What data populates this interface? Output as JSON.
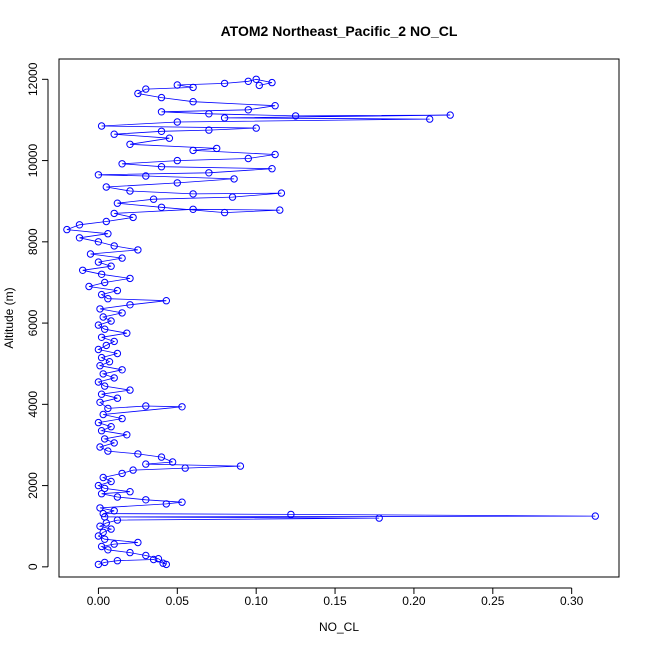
{
  "chart_data": {
    "type": "scatter",
    "title": "ATOM2 Northeast_Pacific_2 NO_CL",
    "xlabel": "NO_CL",
    "ylabel": "Altitude (m)",
    "xlim": [
      -0.025,
      0.33
    ],
    "ylim": [
      -250,
      12500
    ],
    "xticks": [
      0.0,
      0.05,
      0.1,
      0.15,
      0.2,
      0.25,
      0.3
    ],
    "xtick_labels": [
      "0.00",
      "0.05",
      "0.10",
      "0.15",
      "0.20",
      "0.25",
      "0.30"
    ],
    "yticks": [
      0,
      2000,
      4000,
      6000,
      8000,
      10000,
      12000
    ],
    "ytick_labels": [
      "0",
      "2000",
      "4000",
      "6000",
      "8000",
      "10000",
      "12000"
    ],
    "grid": false,
    "marker": "open-circle",
    "connected": true,
    "color": "#0000ff",
    "series": [
      {
        "points": [
          [
            0.0,
            60
          ],
          [
            0.004,
            110
          ],
          [
            0.012,
            150
          ],
          [
            0.035,
            180
          ],
          [
            0.041,
            90
          ],
          [
            0.043,
            60
          ],
          [
            0.038,
            200
          ],
          [
            0.03,
            280
          ],
          [
            0.02,
            350
          ],
          [
            0.006,
            420
          ],
          [
            0.002,
            500
          ],
          [
            0.01,
            560
          ],
          [
            0.025,
            600
          ],
          [
            0.004,
            680
          ],
          [
            0.0,
            760
          ],
          [
            0.003,
            850
          ],
          [
            0.008,
            930
          ],
          [
            0.001,
            1000
          ],
          [
            0.005,
            1080
          ],
          [
            0.012,
            1150
          ],
          [
            0.178,
            1200
          ],
          [
            0.004,
            1230
          ],
          [
            0.315,
            1250
          ],
          [
            0.122,
            1290
          ],
          [
            0.003,
            1310
          ],
          [
            0.01,
            1380
          ],
          [
            0.001,
            1450
          ],
          [
            0.043,
            1550
          ],
          [
            0.053,
            1590
          ],
          [
            0.03,
            1650
          ],
          [
            0.012,
            1720
          ],
          [
            0.002,
            1800
          ],
          [
            0.02,
            1850
          ],
          [
            0.004,
            1930
          ],
          [
            0.0,
            2000
          ],
          [
            0.008,
            2100
          ],
          [
            0.003,
            2200
          ],
          [
            0.015,
            2300
          ],
          [
            0.022,
            2380
          ],
          [
            0.055,
            2430
          ],
          [
            0.09,
            2480
          ],
          [
            0.03,
            2530
          ],
          [
            0.047,
            2580
          ],
          [
            0.04,
            2700
          ],
          [
            0.025,
            2780
          ],
          [
            0.006,
            2850
          ],
          [
            0.001,
            2950
          ],
          [
            0.01,
            3050
          ],
          [
            0.004,
            3150
          ],
          [
            0.018,
            3250
          ],
          [
            0.002,
            3350
          ],
          [
            0.008,
            3450
          ],
          [
            0.0,
            3550
          ],
          [
            0.015,
            3650
          ],
          [
            0.003,
            3750
          ],
          [
            0.053,
            3940
          ],
          [
            0.03,
            3960
          ],
          [
            0.006,
            3900
          ],
          [
            0.001,
            4050
          ],
          [
            0.012,
            4150
          ],
          [
            0.002,
            4250
          ],
          [
            0.02,
            4350
          ],
          [
            0.004,
            4450
          ],
          [
            0.0,
            4550
          ],
          [
            0.01,
            4650
          ],
          [
            0.003,
            4750
          ],
          [
            0.015,
            4850
          ],
          [
            0.001,
            4950
          ],
          [
            0.007,
            5050
          ],
          [
            0.002,
            5150
          ],
          [
            0.012,
            5250
          ],
          [
            0.0,
            5350
          ],
          [
            0.005,
            5450
          ],
          [
            0.01,
            5550
          ],
          [
            0.002,
            5650
          ],
          [
            0.018,
            5750
          ],
          [
            0.004,
            5850
          ],
          [
            0.0,
            5950
          ],
          [
            0.008,
            6050
          ],
          [
            0.003,
            6150
          ],
          [
            0.015,
            6250
          ],
          [
            0.001,
            6350
          ],
          [
            0.02,
            6450
          ],
          [
            0.043,
            6550
          ],
          [
            0.006,
            6600
          ],
          [
            0.002,
            6700
          ],
          [
            0.012,
            6800
          ],
          [
            -0.006,
            6900
          ],
          [
            0.004,
            7000
          ],
          [
            0.02,
            7100
          ],
          [
            0.002,
            7200
          ],
          [
            -0.01,
            7300
          ],
          [
            0.008,
            7400
          ],
          [
            0.0,
            7500
          ],
          [
            0.015,
            7600
          ],
          [
            -0.005,
            7700
          ],
          [
            0.025,
            7800
          ],
          [
            0.01,
            7900
          ],
          [
            0.0,
            8000
          ],
          [
            -0.012,
            8100
          ],
          [
            0.006,
            8200
          ],
          [
            -0.02,
            8300
          ],
          [
            -0.012,
            8420
          ],
          [
            0.005,
            8500
          ],
          [
            0.022,
            8600
          ],
          [
            0.01,
            8700
          ],
          [
            0.06,
            8800
          ],
          [
            0.115,
            8780
          ],
          [
            0.08,
            8720
          ],
          [
            0.04,
            8850
          ],
          [
            0.012,
            8950
          ],
          [
            0.035,
            9050
          ],
          [
            0.085,
            9100
          ],
          [
            0.116,
            9200
          ],
          [
            0.06,
            9180
          ],
          [
            0.02,
            9250
          ],
          [
            0.005,
            9350
          ],
          [
            0.05,
            9450
          ],
          [
            0.086,
            9550
          ],
          [
            0.03,
            9620
          ],
          [
            0.0,
            9650
          ],
          [
            0.07,
            9700
          ],
          [
            0.11,
            9800
          ],
          [
            0.04,
            9850
          ],
          [
            0.015,
            9920
          ],
          [
            0.05,
            10000
          ],
          [
            0.095,
            10050
          ],
          [
            0.112,
            10150
          ],
          [
            0.06,
            10250
          ],
          [
            0.075,
            10300
          ],
          [
            0.02,
            10400
          ],
          [
            0.045,
            10550
          ],
          [
            0.01,
            10650
          ],
          [
            0.04,
            10720
          ],
          [
            0.07,
            10750
          ],
          [
            0.1,
            10800
          ],
          [
            0.002,
            10850
          ],
          [
            0.05,
            10950
          ],
          [
            0.21,
            11020
          ],
          [
            0.08,
            11050
          ],
          [
            0.223,
            11120
          ],
          [
            0.125,
            11100
          ],
          [
            0.07,
            11150
          ],
          [
            0.04,
            11200
          ],
          [
            0.095,
            11250
          ],
          [
            0.112,
            11350
          ],
          [
            0.06,
            11450
          ],
          [
            0.04,
            11550
          ],
          [
            0.025,
            11650
          ],
          [
            0.03,
            11760
          ],
          [
            0.06,
            11800
          ],
          [
            0.05,
            11860
          ],
          [
            0.08,
            11900
          ],
          [
            0.095,
            11950
          ],
          [
            0.1,
            12000
          ],
          [
            0.11,
            11920
          ],
          [
            0.102,
            11850
          ]
        ]
      }
    ]
  }
}
